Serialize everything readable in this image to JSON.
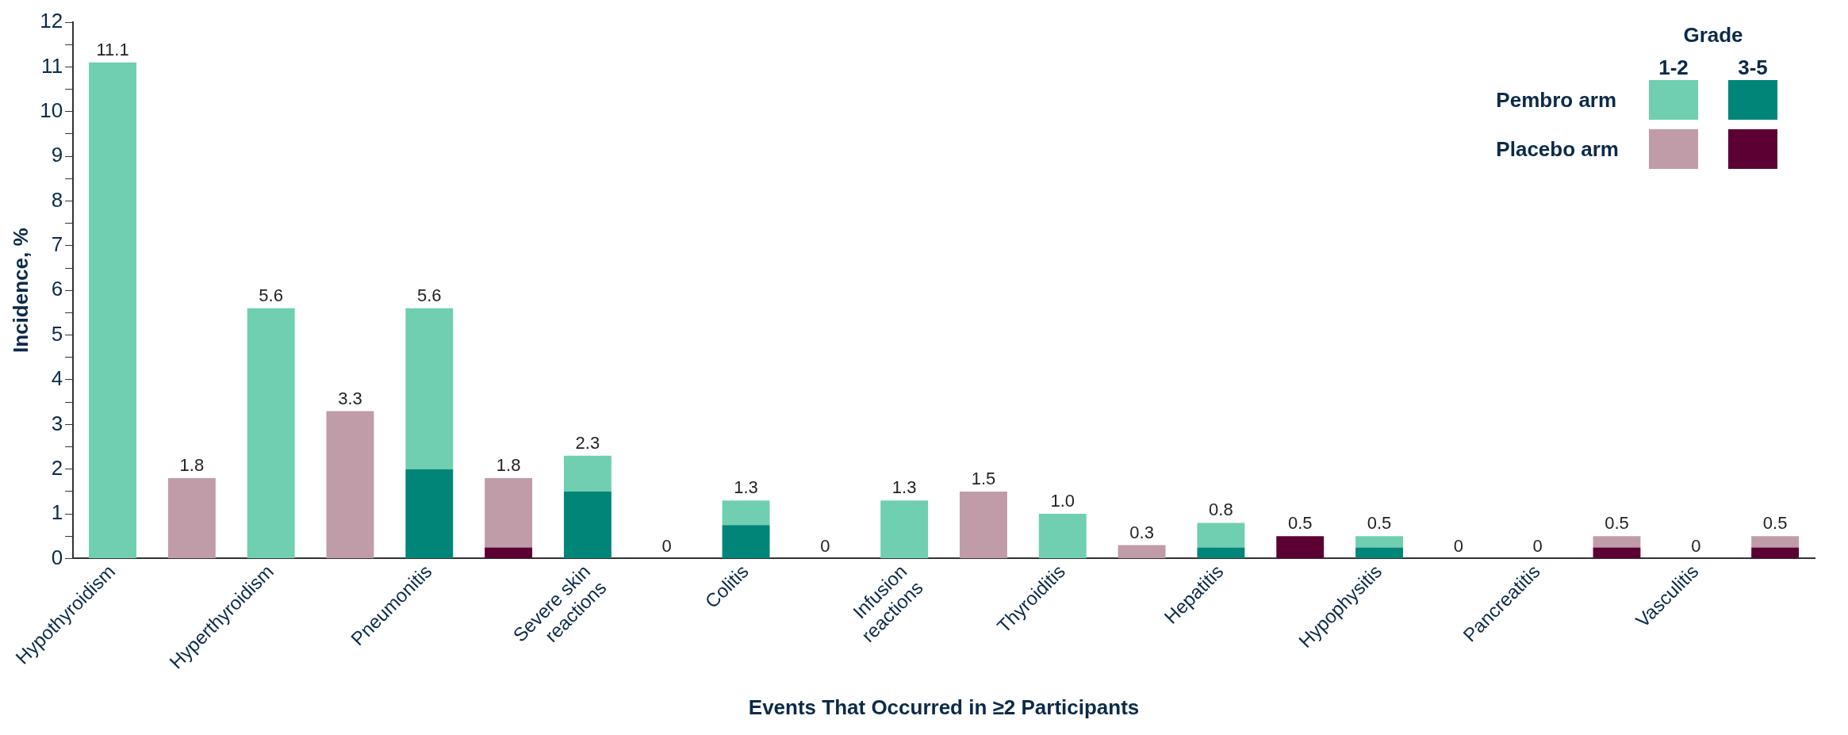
{
  "chart_data": {
    "type": "bar",
    "stacked": true,
    "xlabel": "Events That Occurred in ≥2 Participants",
    "ylabel": "Incidence, %",
    "legend_title": "Grade",
    "annotations": [
      "Pembro arm",
      "Placebo arm"
    ],
    "legend": "top right",
    "grid": false,
    "categories": [
      "Hypothyroidism",
      null,
      "Hyperthyroidism",
      null,
      "Pneumonitis",
      null,
      "Severe skin reactions",
      null,
      "Colitis",
      null,
      "Infusion reactions",
      null,
      "Thyroiditis",
      null,
      "Hepatitis",
      null,
      "Hypophysitis",
      null,
      "Pancreatitis",
      null,
      "Vasculitis",
      null
    ],
    "ylim": [
      0,
      12
    ],
    "yticks": [
      0,
      {
        "value": 0.5,
        "label": null
      },
      1,
      {
        "value": 1.5,
        "label": null
      },
      2,
      {
        "value": 2.5,
        "label": null
      },
      3,
      {
        "value": 3.5,
        "label": null
      },
      4,
      {
        "value": 4.5,
        "label": null
      },
      5,
      {
        "value": 5.5,
        "label": null
      },
      6,
      {
        "value": 6.5,
        "label": null
      },
      7,
      {
        "value": 7.5,
        "label": null
      },
      8,
      {
        "value": 8.5,
        "label": null
      },
      9,
      {
        "value": 9.5,
        "label": null
      },
      10,
      {
        "value": 10.5,
        "label": null
      },
      11,
      {
        "value": 11.5,
        "label": null
      },
      12
    ],
    "series": [
      {
        "name": "3-5",
        "color": "#008578",
        "values": [
          0,
          null,
          0,
          null,
          2.0,
          null,
          1.5,
          null,
          0.75,
          null,
          0,
          null,
          0,
          null,
          0.25,
          null,
          0.25,
          null,
          0,
          null,
          0,
          null
        ]
      },
      {
        "name": "1-2",
        "color": "#6fcfb0",
        "values": [
          11.1,
          null,
          5.6,
          null,
          3.6,
          null,
          0.8,
          null,
          0.55,
          null,
          1.3,
          null,
          1.0,
          null,
          0.55,
          null,
          0.25,
          null,
          0,
          null,
          0,
          null
        ]
      },
      {
        "color": "#5c0033",
        "values": [
          null,
          0,
          null,
          0,
          null,
          0.25,
          null,
          0,
          null,
          0,
          null,
          0,
          null,
          0,
          null,
          0.5,
          null,
          0,
          null,
          0.25,
          null,
          0.25
        ]
      },
      {
        "color": "#c09ca8",
        "values": [
          null,
          1.8,
          null,
          3.3,
          null,
          1.55,
          null,
          0,
          null,
          0,
          null,
          1.5,
          null,
          0.3,
          null,
          0,
          null,
          0,
          null,
          0.25,
          null,
          0.25
        ]
      }
    ],
    "totals": [
      "11.1",
      "1.8",
      "5.6",
      "3.3",
      "5.6",
      "1.8",
      "2.3",
      "0",
      "1.3",
      "0",
      "1.3",
      "1.5",
      "1.0",
      "0.3",
      "0.8",
      "0.5",
      "0.5",
      "0",
      "0",
      "0.5",
      "0",
      "0.5"
    ]
  }
}
